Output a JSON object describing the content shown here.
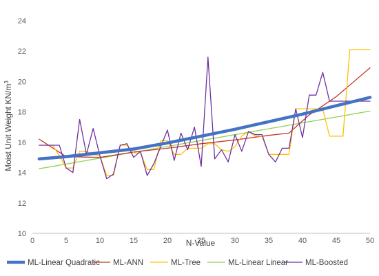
{
  "chart_data": {
    "type": "line",
    "xlabel": "N-Value",
    "ylabel": "Moist Unit Weight KN/m³",
    "ylabel_main": "Moist Unit Weight KN/m",
    "ylabel_sup": "3",
    "xlim": [
      0,
      50
    ],
    "ylim": [
      10,
      25
    ],
    "x_ticks": [
      0,
      5,
      10,
      15,
      20,
      25,
      30,
      35,
      40,
      45,
      50
    ],
    "y_ticks": [
      10,
      12,
      14,
      16,
      18,
      20,
      22,
      24
    ],
    "grid": "none",
    "legend_position": "bottom",
    "series": [
      {
        "name": "ML-Linear Quadratic",
        "color": "#4472c4",
        "width": "thick",
        "points": [
          [
            1,
            14.9
          ],
          [
            5,
            15.05
          ],
          [
            10,
            15.3
          ],
          [
            15,
            15.55
          ],
          [
            20,
            15.95
          ],
          [
            25,
            16.4
          ],
          [
            30,
            16.85
          ],
          [
            35,
            17.35
          ],
          [
            40,
            17.85
          ],
          [
            45,
            18.4
          ],
          [
            50,
            18.95
          ]
        ]
      },
      {
        "name": "ML-ANN",
        "color": "#c0392b",
        "width": "thin",
        "points": [
          [
            1,
            16.2
          ],
          [
            5,
            15.05
          ],
          [
            10,
            15.0
          ],
          [
            15,
            15.35
          ],
          [
            20,
            15.6
          ],
          [
            25,
            15.9
          ],
          [
            30,
            16.15
          ],
          [
            35,
            16.45
          ],
          [
            38,
            16.6
          ],
          [
            41,
            17.8
          ],
          [
            45,
            19.0
          ],
          [
            50,
            20.9
          ]
        ]
      },
      {
        "name": "ML-Tree",
        "color": "#ffc000",
        "width": "thin",
        "points": [
          [
            1,
            15.8
          ],
          [
            3,
            15.8
          ],
          [
            4,
            15.1
          ],
          [
            5,
            14.3
          ],
          [
            6,
            14.3
          ],
          [
            7,
            15.4
          ],
          [
            8,
            15.4
          ],
          [
            9,
            15.2
          ],
          [
            10,
            15.1
          ],
          [
            11,
            13.8
          ],
          [
            12,
            13.8
          ],
          [
            13,
            15.8
          ],
          [
            14,
            15.8
          ],
          [
            15,
            15.3
          ],
          [
            16,
            15.3
          ],
          [
            17,
            14.2
          ],
          [
            18,
            14.2
          ],
          [
            19,
            16.1
          ],
          [
            20,
            16.1
          ],
          [
            21,
            15.2
          ],
          [
            22,
            15.2
          ],
          [
            23,
            15.6
          ],
          [
            24,
            15.6
          ],
          [
            25,
            15.6
          ],
          [
            26,
            15.9
          ],
          [
            27,
            15.9
          ],
          [
            28,
            15.5
          ],
          [
            29,
            15.4
          ],
          [
            30,
            15.7
          ],
          [
            31,
            16.4
          ],
          [
            32,
            16.7
          ],
          [
            33,
            16.4
          ],
          [
            34,
            16.4
          ],
          [
            35,
            15.2
          ],
          [
            38,
            15.2
          ],
          [
            39,
            18.2
          ],
          [
            42,
            18.2
          ],
          [
            43,
            18.2
          ],
          [
            44,
            16.4
          ],
          [
            46,
            16.4
          ],
          [
            47,
            22.1
          ],
          [
            50,
            22.1
          ]
        ]
      },
      {
        "name": "ML-Linear Linear",
        "color": "#92d050",
        "width": "thin",
        "points": [
          [
            1,
            14.25
          ],
          [
            50,
            18.05
          ]
        ]
      },
      {
        "name": "ML-Boosted",
        "color": "#7030a0",
        "width": "thin",
        "points": [
          [
            1,
            15.8
          ],
          [
            3,
            15.8
          ],
          [
            4,
            15.8
          ],
          [
            5,
            14.3
          ],
          [
            6,
            14.0
          ],
          [
            7,
            17.5
          ],
          [
            8,
            15.2
          ],
          [
            9,
            16.9
          ],
          [
            10,
            15.1
          ],
          [
            11,
            13.6
          ],
          [
            12,
            13.9
          ],
          [
            13,
            15.8
          ],
          [
            14,
            15.9
          ],
          [
            15,
            15.0
          ],
          [
            16,
            15.4
          ],
          [
            17,
            13.8
          ],
          [
            18,
            14.6
          ],
          [
            19,
            15.7
          ],
          [
            20,
            16.8
          ],
          [
            21,
            14.8
          ],
          [
            22,
            16.6
          ],
          [
            23,
            15.5
          ],
          [
            24,
            17.0
          ],
          [
            25,
            14.4
          ],
          [
            26,
            21.6
          ],
          [
            27,
            14.9
          ],
          [
            28,
            15.5
          ],
          [
            29,
            14.7
          ],
          [
            30,
            16.5
          ],
          [
            31,
            15.4
          ],
          [
            32,
            16.7
          ],
          [
            33,
            16.5
          ],
          [
            34,
            16.5
          ],
          [
            35,
            15.2
          ],
          [
            36,
            14.7
          ],
          [
            37,
            15.6
          ],
          [
            38,
            15.6
          ],
          [
            39,
            18.2
          ],
          [
            40,
            16.3
          ],
          [
            41,
            19.1
          ],
          [
            42,
            19.1
          ],
          [
            43,
            20.6
          ],
          [
            44,
            18.7
          ],
          [
            48,
            18.7
          ],
          [
            49,
            18.7
          ],
          [
            50,
            18.7
          ]
        ]
      }
    ],
    "draw_order": [
      3,
      1,
      2,
      4,
      0
    ]
  }
}
